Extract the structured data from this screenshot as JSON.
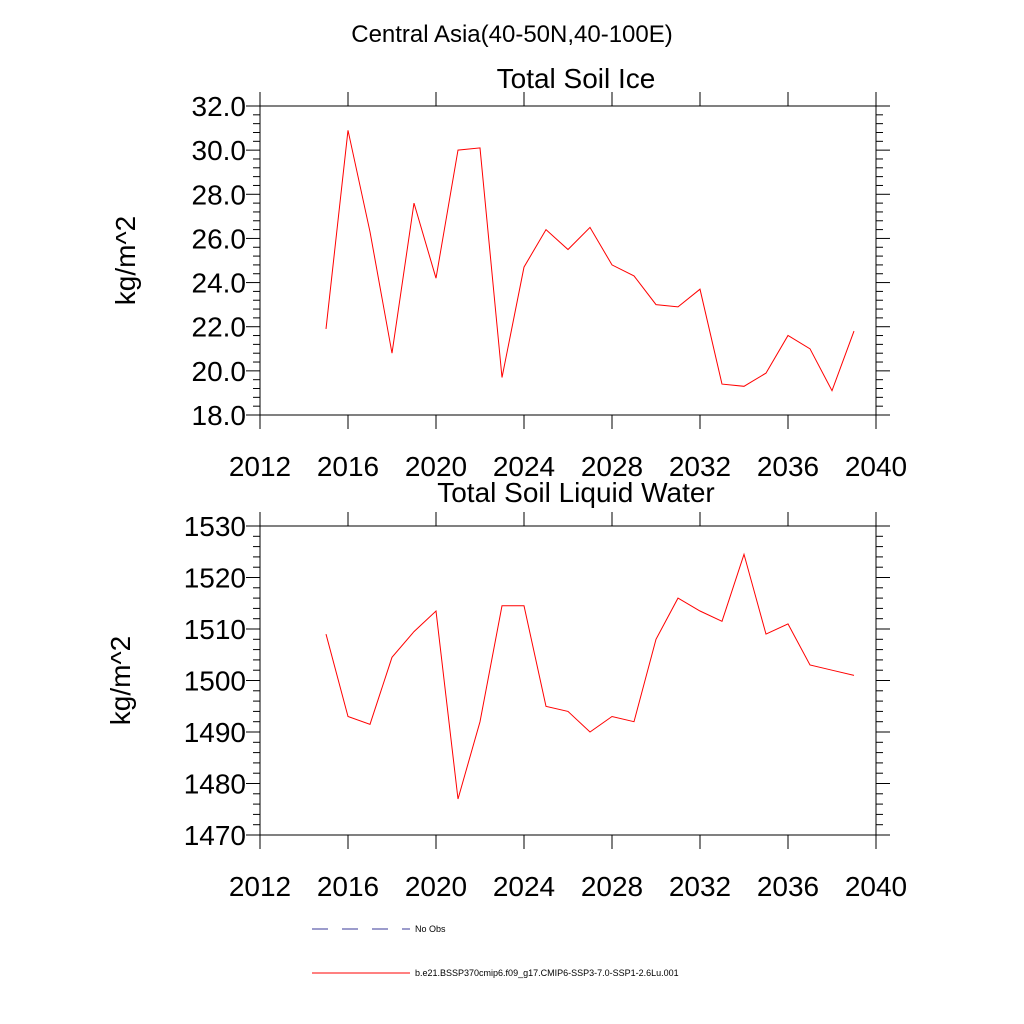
{
  "title": "Central Asia(40-50N,40-100E)",
  "chart_data": [
    {
      "type": "line",
      "title": "Total Soil Ice",
      "ylabel": "kg/m^2",
      "xlabel": "",
      "xlim": [
        2012,
        2040
      ],
      "ylim": [
        18.0,
        32.0
      ],
      "x_ticks": [
        2012,
        2016,
        2020,
        2024,
        2028,
        2032,
        2036,
        2040
      ],
      "y_ticks": [
        "18.0",
        "20.0",
        "22.0",
        "24.0",
        "26.0",
        "28.0",
        "30.0",
        "32.0"
      ],
      "y_tick_values": [
        18,
        20,
        22,
        24,
        26,
        28,
        30,
        32
      ],
      "series": [
        {
          "name": "b.e21.BSSP370cmip6.f09_g17.CMIP6-SSP3-7.0-SSP1-2.6Lu.001",
          "color": "#ff0000",
          "x": [
            2015,
            2016,
            2017,
            2018,
            2019,
            2020,
            2021,
            2022,
            2023,
            2024,
            2025,
            2026,
            2027,
            2028,
            2029,
            2030,
            2031,
            2032,
            2033,
            2034,
            2035,
            2036,
            2037,
            2038,
            2039
          ],
          "y": [
            21.9,
            30.9,
            26.3,
            20.8,
            27.6,
            24.2,
            30.0,
            30.1,
            19.7,
            24.7,
            26.4,
            25.5,
            26.5,
            24.8,
            24.3,
            23.0,
            22.9,
            23.7,
            19.4,
            19.3,
            19.9,
            21.6,
            21.0,
            19.1,
            21.8
          ]
        }
      ],
      "grid": false
    },
    {
      "type": "line",
      "title": "Total Soil Liquid Water",
      "ylabel": "kg/m^2",
      "xlabel": "",
      "xlim": [
        2012,
        2040
      ],
      "ylim": [
        1470,
        1530
      ],
      "x_ticks": [
        2012,
        2016,
        2020,
        2024,
        2028,
        2032,
        2036,
        2040
      ],
      "y_ticks": [
        "1470",
        "1480",
        "1490",
        "1500",
        "1510",
        "1520",
        "1530"
      ],
      "y_tick_values": [
        1470,
        1480,
        1490,
        1500,
        1510,
        1520,
        1530
      ],
      "series": [
        {
          "name": "b.e21.BSSP370cmip6.f09_g17.CMIP6-SSP3-7.0-SSP1-2.6Lu.001",
          "color": "#ff0000",
          "x": [
            2015,
            2016,
            2017,
            2018,
            2019,
            2020,
            2021,
            2022,
            2023,
            2024,
            2025,
            2026,
            2027,
            2028,
            2029,
            2030,
            2031,
            2032,
            2033,
            2034,
            2035,
            2036,
            2037,
            2038,
            2039
          ],
          "y": [
            1509,
            1493,
            1491.5,
            1504.5,
            1509.5,
            1513.5,
            1477,
            1492,
            1514.5,
            1514.5,
            1495,
            1494,
            1490,
            1493,
            1492,
            1508,
            1516,
            1513.5,
            1511.5,
            1524.5,
            1509,
            1511,
            1503,
            1502,
            1501
          ]
        }
      ],
      "grid": false
    }
  ],
  "legend": {
    "items": [
      {
        "label": "No Obs",
        "color": "#3a3a9a",
        "style": "dashed"
      },
      {
        "label": "b.e21.BSSP370cmip6.f09_g17.CMIP6-SSP3-7.0-SSP1-2.6Lu.001",
        "color": "#ff0000",
        "style": "solid"
      }
    ]
  }
}
